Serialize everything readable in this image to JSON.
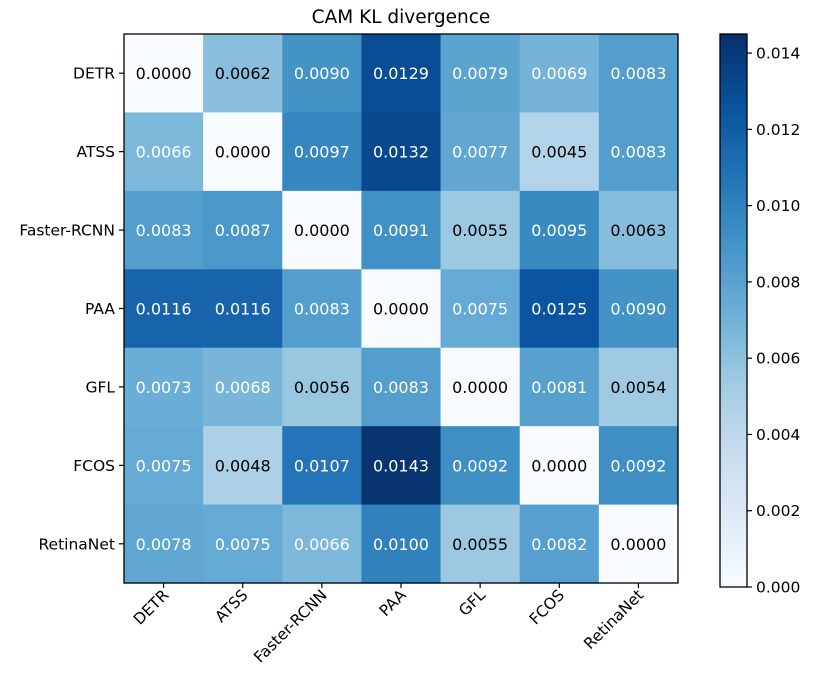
{
  "chart_data": {
    "type": "heatmap",
    "title": "CAM KL divergence",
    "xlabel": "",
    "ylabel": "",
    "rows": [
      "DETR",
      "ATSS",
      "Faster-RCNN",
      "PAA",
      "GFL",
      "FCOS",
      "RetinaNet"
    ],
    "columns": [
      "DETR",
      "ATSS",
      "Faster-RCNN",
      "PAA",
      "GFL",
      "FCOS",
      "RetinaNet"
    ],
    "values": [
      [
        0.0,
        0.0062,
        0.009,
        0.0129,
        0.0079,
        0.0069,
        0.0083
      ],
      [
        0.0066,
        0.0,
        0.0097,
        0.0132,
        0.0077,
        0.0045,
        0.0083
      ],
      [
        0.0083,
        0.0087,
        0.0,
        0.0091,
        0.0055,
        0.0095,
        0.0063
      ],
      [
        0.0116,
        0.0116,
        0.0083,
        0.0,
        0.0075,
        0.0125,
        0.009
      ],
      [
        0.0073,
        0.0068,
        0.0056,
        0.0083,
        0.0,
        0.0081,
        0.0054
      ],
      [
        0.0075,
        0.0048,
        0.0107,
        0.0143,
        0.0092,
        0.0,
        0.0092
      ],
      [
        0.0078,
        0.0075,
        0.0066,
        0.01,
        0.0055,
        0.0082,
        0.0
      ]
    ],
    "value_labels": [
      [
        "0.0000",
        "0.0062",
        "0.0090",
        "0.0129",
        "0.0079",
        "0.0069",
        "0.0083"
      ],
      [
        "0.0066",
        "0.0000",
        "0.0097",
        "0.0132",
        "0.0077",
        "0.0045",
        "0.0083"
      ],
      [
        "0.0083",
        "0.0087",
        "0.0000",
        "0.0091",
        "0.0055",
        "0.0095",
        "0.0063"
      ],
      [
        "0.0116",
        "0.0116",
        "0.0083",
        "0.0000",
        "0.0075",
        "0.0125",
        "0.0090"
      ],
      [
        "0.0073",
        "0.0068",
        "0.0056",
        "0.0083",
        "0.0000",
        "0.0081",
        "0.0054"
      ],
      [
        "0.0075",
        "0.0048",
        "0.0107",
        "0.0143",
        "0.0092",
        "0.0000",
        "0.0092"
      ],
      [
        "0.0078",
        "0.0075",
        "0.0066",
        "0.0100",
        "0.0055",
        "0.0082",
        "0.0000"
      ]
    ],
    "colorbar": {
      "min": 0.0,
      "max": 0.0145,
      "ticks": [
        0.0,
        0.002,
        0.004,
        0.006,
        0.008,
        0.01,
        0.012,
        0.014
      ],
      "tick_labels": [
        "0.000",
        "0.002",
        "0.004",
        "0.006",
        "0.008",
        "0.010",
        "0.012",
        "0.014"
      ]
    },
    "colormap": "Blues",
    "colormap_stops": [
      "#f7fbff",
      "#deebf7",
      "#c6dbef",
      "#9ecae1",
      "#6baed6",
      "#4292c6",
      "#2171b5",
      "#08519c",
      "#08306b"
    ],
    "text_colors": {
      "dark_text": "#000000",
      "light_text": "#ffffff"
    }
  }
}
